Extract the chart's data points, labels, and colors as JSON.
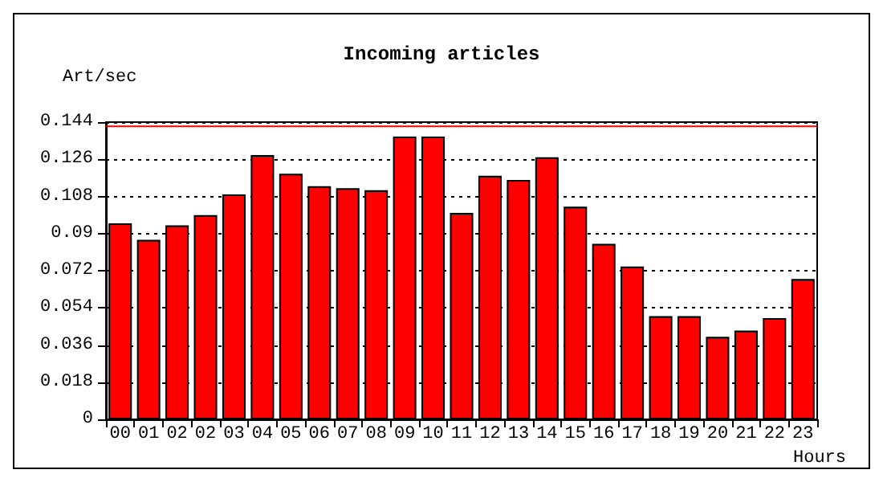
{
  "chart_data": {
    "type": "bar",
    "title": "Incoming articles",
    "ylabel": "Art/sec",
    "xlabel": "Hours",
    "categories": [
      "00",
      "01",
      "02",
      "02",
      "03",
      "04",
      "05",
      "06",
      "07",
      "08",
      "09",
      "10",
      "11",
      "12",
      "13",
      "14",
      "15",
      "16",
      "17",
      "18",
      "19",
      "20",
      "21",
      "22",
      "23"
    ],
    "values": [
      0.095,
      0.087,
      0.094,
      0.099,
      0.109,
      0.128,
      0.119,
      0.113,
      0.112,
      0.111,
      0.137,
      0.137,
      0.1,
      0.118,
      0.116,
      0.127,
      0.103,
      0.085,
      0.074,
      0.05,
      0.05,
      0.04,
      0.043,
      0.049,
      0.068
    ],
    "color": "#ff0000",
    "ylim": [
      0,
      0.144
    ],
    "yticks": [
      0,
      0.018,
      0.036,
      0.054,
      0.072,
      0.09,
      0.108,
      0.126,
      0.144
    ],
    "grid": "y",
    "ref_lines": [
      {
        "axis": "y",
        "value": 0.142,
        "color": "#ff0000"
      }
    ]
  }
}
